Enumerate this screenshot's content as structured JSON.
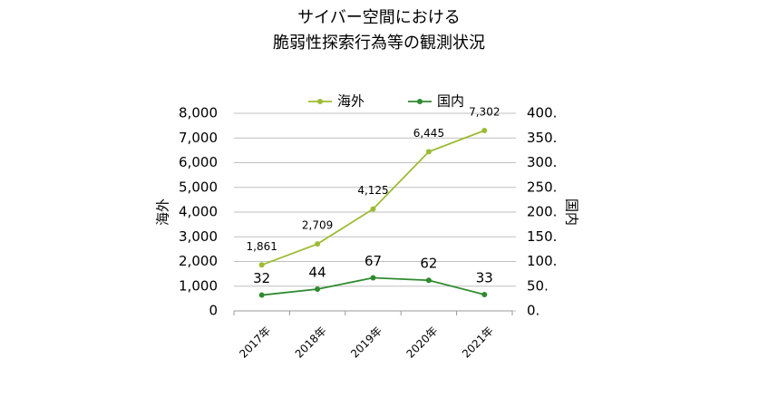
{
  "chart_data": {
    "type": "line",
    "title": [
      "サイバー空間における",
      "脆弱性探索行為等の観測状況"
    ],
    "categories": [
      "2017年",
      "2018年",
      "2019年",
      "2020年",
      "2021年"
    ],
    "series": [
      {
        "name": "海外",
        "color": "#9cbb35",
        "values": [
          1861,
          2709,
          4125,
          6445,
          7302
        ],
        "value_labels": [
          "1,861",
          "2,709",
          "4,125",
          "6,445",
          "7,302"
        ]
      },
      {
        "name": "国内",
        "color": "#2f8a2f",
        "axis": "y2",
        "values": [
          32,
          44,
          67,
          62,
          33
        ]
      }
    ],
    "ylabel": "海外",
    "y2label": "国内",
    "ylim": [
      0,
      8000
    ],
    "yticks": [
      0,
      {
        "value": 1000,
        "label": "1,000"
      },
      {
        "value": 2000,
        "label": "2,000"
      },
      {
        "value": 3000,
        "label": "3,000"
      },
      {
        "value": 4000,
        "label": "4,000"
      },
      {
        "value": 5000,
        "label": "5,000"
      },
      {
        "value": 6000,
        "label": "6,000"
      },
      {
        "value": 7000,
        "label": "7,000"
      },
      {
        "value": 8000,
        "label": "8,000"
      }
    ],
    "y2lim": [
      0,
      400
    ],
    "y2ticks": [
      {
        "value": 0,
        "label": "0."
      },
      {
        "value": 50,
        "label": "50."
      },
      {
        "value": 100,
        "label": "100."
      },
      {
        "value": 150,
        "label": "150."
      },
      {
        "value": 200,
        "label": "200."
      },
      {
        "value": 250,
        "label": "250."
      },
      {
        "value": 300,
        "label": "300."
      },
      {
        "value": 350,
        "label": "350."
      },
      {
        "value": 400,
        "label": "400."
      }
    ],
    "grid": true,
    "legend": "top"
  }
}
